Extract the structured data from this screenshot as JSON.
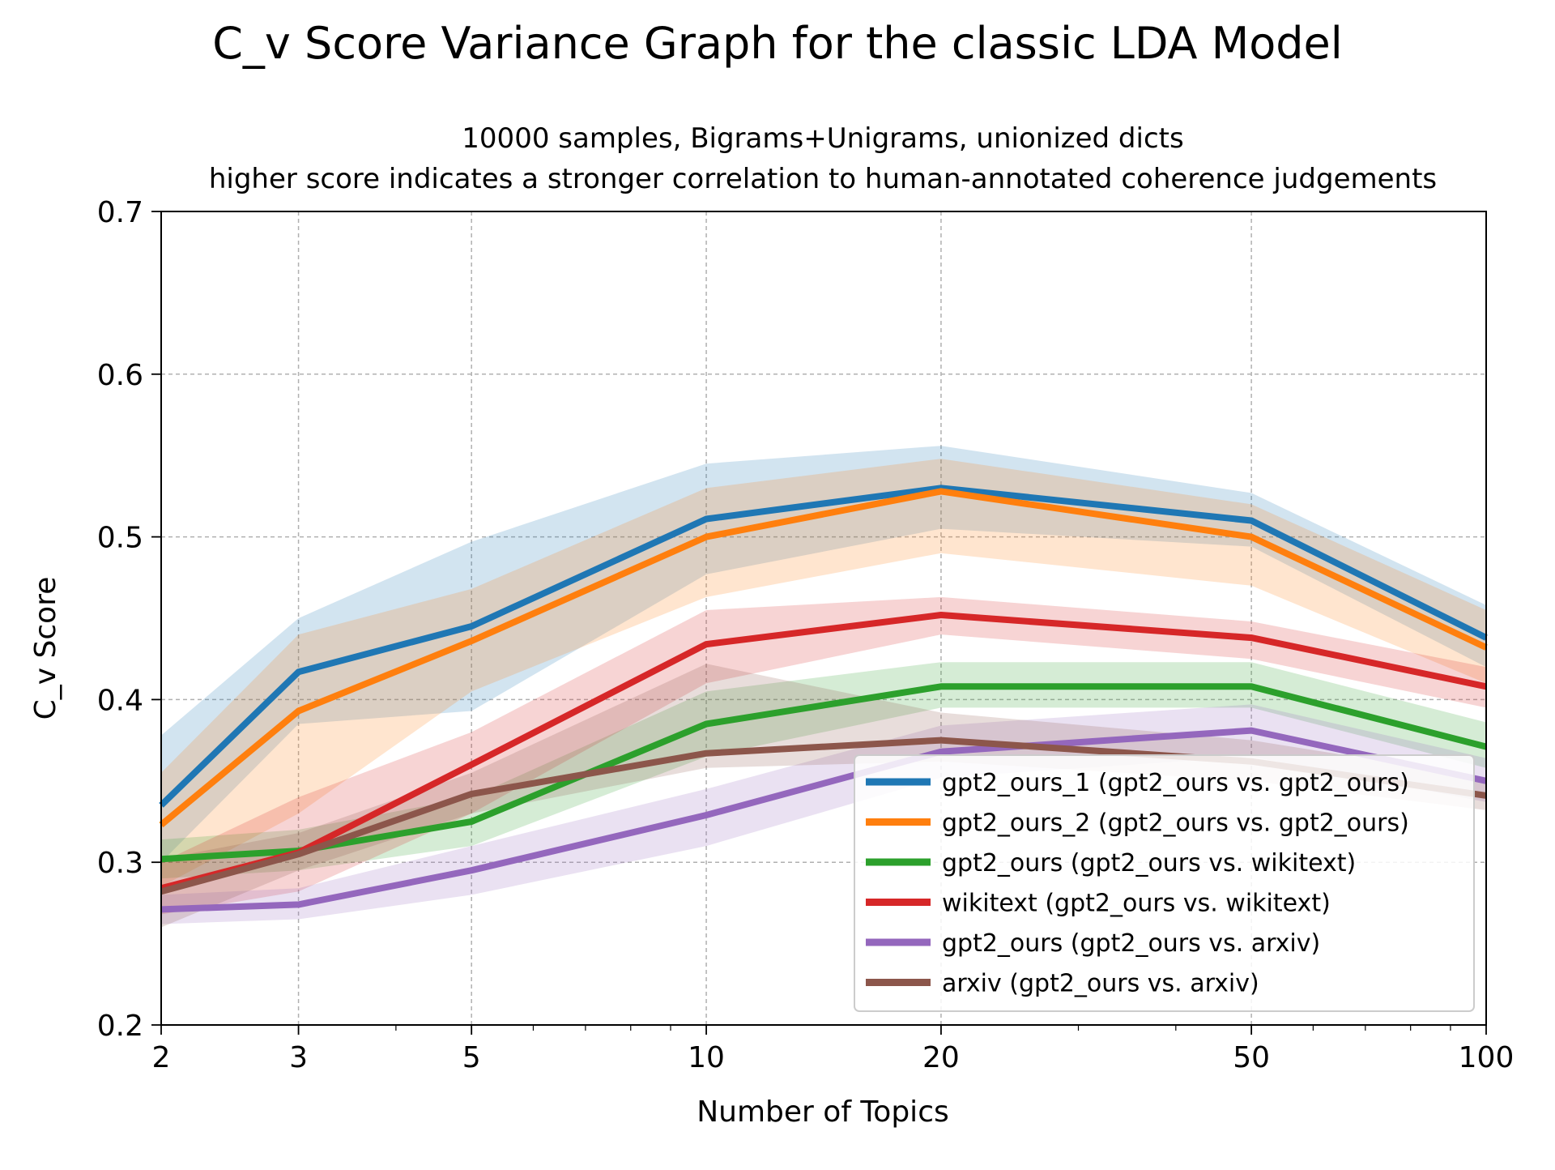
{
  "chart_data": {
    "type": "line",
    "title": "C_v Score Variance Graph for the classic LDA Model",
    "subtitle_line1": "10000 samples, Bigrams+Unigrams, unionized dicts",
    "subtitle_line2": "higher score indicates a stronger correlation to human-annotated coherence judgements",
    "xlabel": "Number of Topics",
    "ylabel": "C_v Score",
    "x_scale": "log",
    "x": [
      2,
      3,
      5,
      10,
      20,
      50,
      100
    ],
    "x_tick_labels": [
      "2",
      "3",
      "5",
      "10",
      "20",
      "50",
      "100"
    ],
    "xlim": [
      2,
      100
    ],
    "ylim": [
      0.2,
      0.7
    ],
    "y_ticks": [
      0.2,
      0.3,
      0.4,
      0.5,
      0.6,
      0.7
    ],
    "y_tick_labels": [
      "0.2",
      "0.3",
      "0.4",
      "0.5",
      "0.6",
      "0.7"
    ],
    "grid": true,
    "legend_position": "lower-right",
    "series": [
      {
        "name": "gpt2_ours_1 (gpt2_ours vs. gpt2_ours)",
        "color": "#1f77b4",
        "values": [
          0.335,
          0.417,
          0.445,
          0.511,
          0.53,
          0.51,
          0.438
        ],
        "lower": [
          0.3,
          0.385,
          0.393,
          0.477,
          0.505,
          0.494,
          0.42
        ],
        "upper": [
          0.378,
          0.45,
          0.497,
          0.545,
          0.556,
          0.527,
          0.458
        ]
      },
      {
        "name": "gpt2_ours_2 (gpt2_ours vs. gpt2_ours)",
        "color": "#ff7f0e",
        "values": [
          0.323,
          0.393,
          0.436,
          0.5,
          0.528,
          0.5,
          0.432
        ],
        "lower": [
          0.285,
          0.33,
          0.405,
          0.463,
          0.49,
          0.47,
          0.41
        ],
        "upper": [
          0.355,
          0.44,
          0.468,
          0.53,
          0.548,
          0.52,
          0.455
        ]
      },
      {
        "name": "gpt2_ours (gpt2_ours vs. wikitext)",
        "color": "#2ca02c",
        "values": [
          0.302,
          0.307,
          0.325,
          0.385,
          0.408,
          0.408,
          0.371
        ],
        "lower": [
          0.29,
          0.295,
          0.31,
          0.365,
          0.395,
          0.395,
          0.358
        ],
        "upper": [
          0.314,
          0.32,
          0.34,
          0.405,
          0.423,
          0.423,
          0.386
        ]
      },
      {
        "name": "wikitext (gpt2_ours vs. wikitext)",
        "color": "#d62728",
        "values": [
          0.284,
          0.306,
          0.36,
          0.434,
          0.452,
          0.438,
          0.408
        ],
        "lower": [
          0.268,
          0.282,
          0.33,
          0.41,
          0.44,
          0.425,
          0.395
        ],
        "upper": [
          0.3,
          0.34,
          0.38,
          0.455,
          0.463,
          0.448,
          0.42
        ]
      },
      {
        "name": "gpt2_ours (gpt2_ours vs. arxiv)",
        "color": "#9467bd",
        "values": [
          0.271,
          0.274,
          0.295,
          0.329,
          0.368,
          0.381,
          0.35
        ],
        "lower": [
          0.262,
          0.265,
          0.28,
          0.31,
          0.352,
          0.365,
          0.337
        ],
        "upper": [
          0.28,
          0.284,
          0.31,
          0.345,
          0.384,
          0.397,
          0.364
        ]
      },
      {
        "name": "arxiv (gpt2_ours vs. arxiv)",
        "color": "#8c564b",
        "values": [
          0.282,
          0.305,
          0.342,
          0.367,
          0.375,
          0.362,
          0.341
        ],
        "lower": [
          0.26,
          0.295,
          0.33,
          0.358,
          0.362,
          0.35,
          0.332
        ],
        "upper": [
          0.302,
          0.318,
          0.355,
          0.422,
          0.392,
          0.375,
          0.352
        ]
      }
    ]
  }
}
